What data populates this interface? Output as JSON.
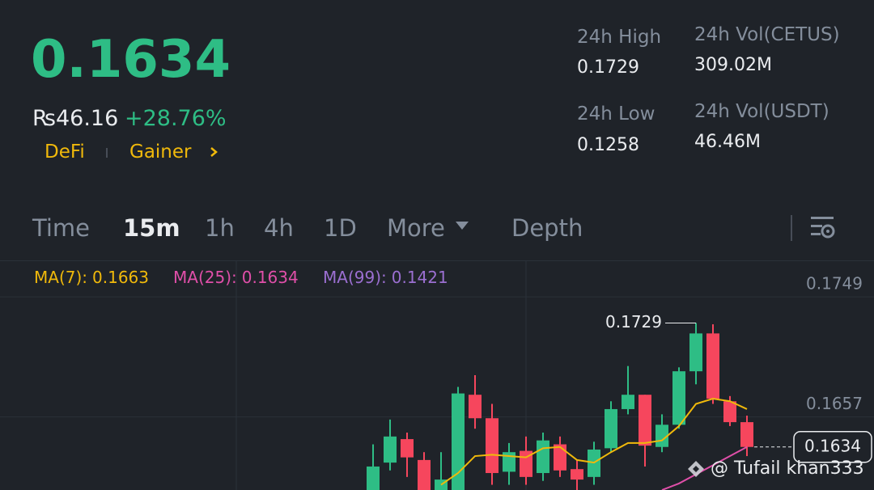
{
  "header": {
    "price": "0.1634",
    "fiat_price": "₨46.16",
    "change": "+28.76%",
    "tags": [
      "DeFi",
      "Gainer"
    ]
  },
  "stats": [
    {
      "label": "24h High",
      "value": "0.1729"
    },
    {
      "label": "24h Vol(CETUS)",
      "value": "309.02M"
    },
    {
      "label": "24h Low",
      "value": "0.1258"
    },
    {
      "label": "24h Vol(USDT)",
      "value": "46.46M"
    }
  ],
  "tabs": [
    "Time",
    "15m",
    "1h",
    "4h",
    "1D",
    "More",
    "Depth"
  ],
  "active_tab": 1,
  "chart_data": {
    "type": "candlestick",
    "ylim": [
      0.1601,
      0.1777
    ],
    "yticks": [
      0.1749,
      0.1657
    ],
    "grid": true,
    "up_color": "#2ebd85",
    "down_color": "#f6465d",
    "high": 0.1729,
    "last": 0.1634,
    "open": [
      0.1601,
      0.1622,
      0.164,
      0.1624,
      0.1598,
      0.16,
      0.1674,
      0.1656,
      0.1615,
      0.1631,
      0.1614,
      0.1636,
      0.1617,
      0.1611,
      0.1633,
      0.1663,
      0.1674,
      0.1634,
      0.1651,
      0.1692,
      0.1721,
      0.1669,
      0.1653
    ],
    "high_values": [
      0.1636,
      0.1655,
      0.1645,
      0.163,
      0.163,
      0.168,
      0.1689,
      0.1667,
      0.1637,
      0.1642,
      0.1645,
      0.1642,
      0.1624,
      0.1638,
      0.1669,
      0.1696,
      0.1674,
      0.1659,
      0.1695,
      0.1729,
      0.1728,
      0.1673,
      0.1658
    ],
    "low": [
      0.1598,
      0.1616,
      0.1611,
      0.1595,
      0.1595,
      0.1595,
      0.1648,
      0.1605,
      0.1605,
      0.1605,
      0.1608,
      0.1611,
      0.16,
      0.1605,
      0.163,
      0.1659,
      0.1619,
      0.163,
      0.1648,
      0.1682,
      0.1667,
      0.165,
      0.1627
    ],
    "close": [
      0.1619,
      0.1642,
      0.1626,
      0.16,
      0.1609,
      0.1675,
      0.1656,
      0.1614,
      0.163,
      0.1611,
      0.1639,
      0.1616,
      0.1609,
      0.1632,
      0.1663,
      0.1674,
      0.1635,
      0.1651,
      0.1692,
      0.1721,
      0.1671,
      0.1653,
      0.1634
    ],
    "ma": [
      {
        "label": "MA(7):",
        "value": 0.1663,
        "color": "#f0b90b",
        "values": [
          null,
          null,
          null,
          null,
          0.1605,
          0.1614,
          0.1627,
          0.1628,
          0.1627,
          0.1626,
          0.1633,
          0.1634,
          0.1624,
          0.1622,
          0.163,
          0.1637,
          0.1637,
          0.1639,
          0.165,
          0.1667,
          0.1671,
          0.1669,
          0.1663
        ]
      },
      {
        "label": "MA(25):",
        "value": 0.1634,
        "color": "#e04fa9",
        "values": [
          null,
          null,
          null,
          null,
          null,
          null,
          null,
          null,
          null,
          null,
          null,
          null,
          null,
          null,
          null,
          null,
          null,
          0.1601,
          0.1606,
          0.1613,
          0.162,
          0.1627,
          0.1634
        ]
      },
      {
        "label": "MA(99):",
        "value": 0.1421,
        "color": "#9b6fd1"
      }
    ],
    "watermark": "@ Tufail khan333"
  }
}
